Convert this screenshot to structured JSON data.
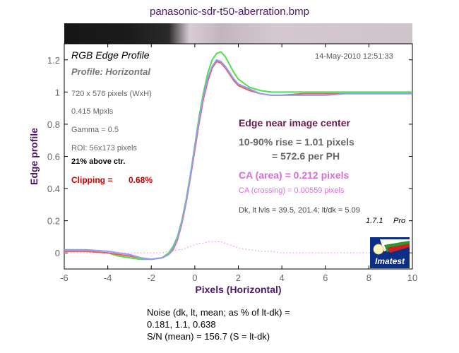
{
  "window": {
    "title": "panasonic-sdr-t50-aberration.bmp"
  },
  "colors": {
    "title": "#4b1a66",
    "green_curve": "#4fe04f",
    "red_curve": "#f05a5a",
    "blue_curve": "#8f9ef2",
    "ca_curve": "#e58ee8",
    "clipping": "#cc0000",
    "ca_text": "#d56fd4",
    "heading_text": "#6b1a4a"
  },
  "annotations": {
    "chart_heading": "RGB Edge Profile",
    "profile": "Profile: Horizontal",
    "timestamp": "14-May-2010 12:51:33",
    "image_size": "720 x 576 pixels (WxH)",
    "megapixels": "0.415 Mpxls",
    "gamma": "Gamma = 0.5",
    "roi": "ROI: 56x173 pixels",
    "roi_offset": "21% above ctr.",
    "clipping_label": "Clipping =",
    "clipping_value": "0.68%",
    "edge_location": "Edge near image center",
    "rise": "10-90% rise = 1.01 pixels",
    "rise_ph": "= 572.6 per PH",
    "ca_area": "CA (area) = 0.212 pixels",
    "ca_crossing": "CA (crossing) = 0.00559 pixels",
    "levels": "Dk, lt lvls = 39.5, 201.4;   lt/dk = 5.09",
    "version_number": "1.7.1",
    "version_edition": "Pro",
    "logo_text": "Imatest"
  },
  "footer": {
    "noise_label": "Noise (dk, lt, mean; as % of lt-dk) =",
    "noise_values": "0.181,  1.1,  0.638",
    "snr": "S/N (mean) = 156.7  (S = lt-dk)"
  },
  "chart_data": {
    "type": "line",
    "title": "panasonic-sdr-t50-aberration.bmp",
    "xlabel": "Pixels (Horizontal)",
    "ylabel": "Edge profile",
    "xlim": [
      -6,
      10
    ],
    "ylim": [
      -0.1,
      1.3
    ],
    "x_ticks": [
      -6,
      -4,
      -2,
      0,
      2,
      4,
      6,
      8,
      10
    ],
    "y_ticks": [
      0,
      0.2,
      0.4,
      0.6,
      0.8,
      1,
      1.2
    ],
    "grid": false,
    "x": [
      -6,
      -5,
      -4,
      -3.5,
      -3,
      -2.5,
      -2,
      -1.5,
      -1.2,
      -1,
      -0.8,
      -0.6,
      -0.4,
      -0.2,
      0,
      0.2,
      0.4,
      0.6,
      0.8,
      1,
      1.2,
      1.4,
      1.6,
      1.8,
      2,
      2.5,
      3,
      3.5,
      4,
      5,
      6,
      7,
      8,
      9,
      10
    ],
    "series": [
      {
        "color": "#4fe04f",
        "values": [
          0.01,
          0.01,
          0.0,
          -0.02,
          -0.03,
          -0.04,
          -0.04,
          -0.03,
          0.0,
          0.04,
          0.1,
          0.2,
          0.33,
          0.49,
          0.67,
          0.85,
          1.0,
          1.12,
          1.2,
          1.24,
          1.25,
          1.22,
          1.17,
          1.12,
          1.08,
          1.03,
          1.01,
          1.0,
          1.0,
          1.0,
          1.0,
          1.0,
          1.0,
          1.0,
          1.0
        ]
      },
      {
        "color": "#f05a5a",
        "values": [
          0.01,
          0.01,
          0.0,
          -0.01,
          -0.02,
          -0.03,
          -0.04,
          -0.03,
          -0.01,
          0.02,
          0.08,
          0.18,
          0.31,
          0.47,
          0.64,
          0.81,
          0.96,
          1.07,
          1.15,
          1.19,
          1.18,
          1.15,
          1.11,
          1.07,
          1.04,
          1.01,
          0.99,
          0.98,
          0.98,
          0.99,
          0.99,
          0.99,
          0.99,
          0.99,
          0.99
        ]
      },
      {
        "color": "#8f9ef2",
        "values": [
          0.02,
          0.02,
          0.01,
          0.0,
          -0.01,
          -0.03,
          -0.04,
          -0.03,
          -0.01,
          0.03,
          0.09,
          0.19,
          0.32,
          0.48,
          0.66,
          0.83,
          0.98,
          1.09,
          1.16,
          1.2,
          1.19,
          1.16,
          1.12,
          1.08,
          1.05,
          1.02,
          0.99,
          0.98,
          0.98,
          0.98,
          0.98,
          0.99,
          0.99,
          0.99,
          0.99
        ]
      },
      {
        "color": "#e58ee8",
        "style": "dotted",
        "values": [
          0.0,
          0.0,
          0.0,
          0.0,
          0.0,
          0.0,
          0.0,
          0.0,
          0.01,
          0.01,
          0.02,
          0.02,
          0.03,
          0.04,
          0.05,
          0.06,
          0.06,
          0.07,
          0.07,
          0.07,
          0.07,
          0.06,
          0.05,
          0.04,
          0.03,
          0.02,
          0.01,
          0.01,
          0.0,
          0.0,
          0.0,
          0.0,
          0.0,
          0.0,
          0.0
        ]
      }
    ]
  }
}
